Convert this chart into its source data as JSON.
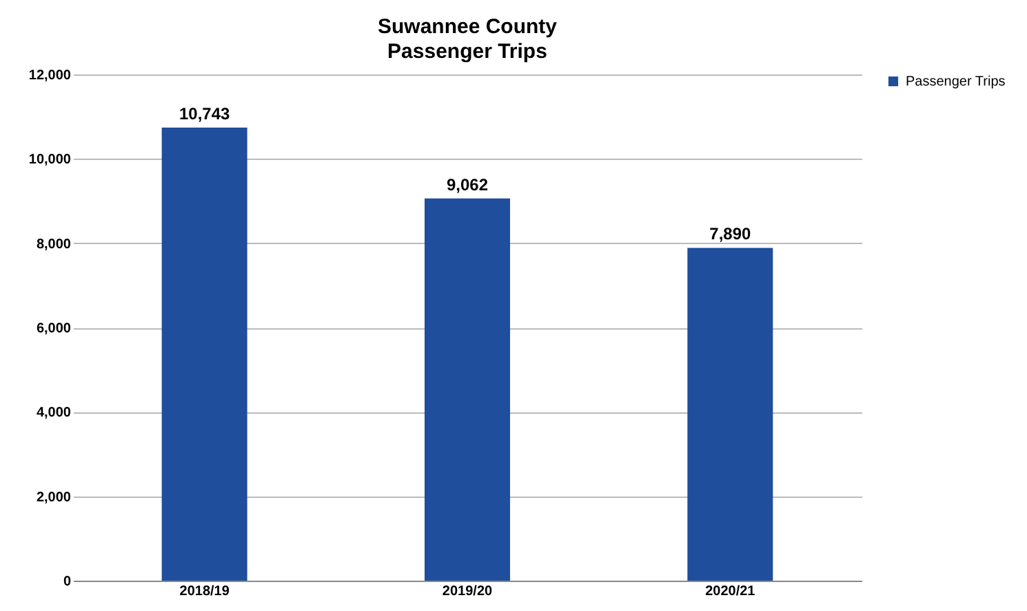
{
  "chart_data": {
    "type": "bar",
    "title": "Suwannee County",
    "subtitle": "Passenger Trips",
    "categories": [
      "2018/19",
      "2019/20",
      "2020/21"
    ],
    "series": [
      {
        "name": "Passenger Trips",
        "color": "#1f4e9c",
        "values": [
          10743,
          9062,
          7890
        ],
        "value_labels": [
          "10,743",
          "9,062",
          "7,890"
        ]
      }
    ],
    "ylim": [
      0,
      12000
    ],
    "yticks": [
      0,
      {
        "value": 2000,
        "label": "2,000"
      },
      {
        "value": 4000,
        "label": "4,000"
      },
      {
        "value": 6000,
        "label": "6,000"
      },
      {
        "value": 8000,
        "label": "8,000"
      },
      {
        "value": 10000,
        "label": "10,000"
      },
      {
        "value": 12000,
        "label": "12,000"
      }
    ],
    "grid": "y",
    "legend": "right"
  }
}
